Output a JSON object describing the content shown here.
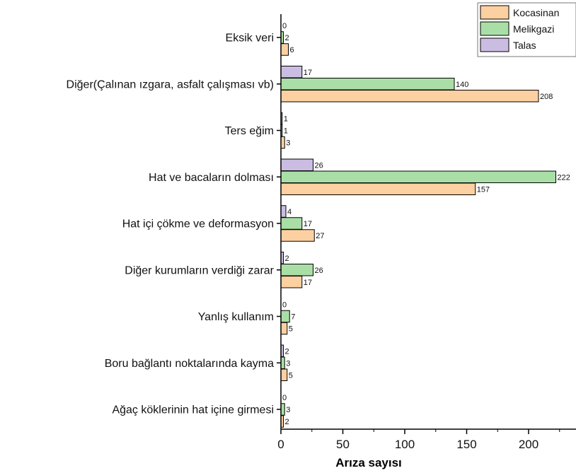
{
  "chart_data": {
    "type": "bar",
    "orientation": "horizontal",
    "title": "",
    "xlabel": "Arıza sayısı",
    "ylabel": "",
    "xlim": [
      0,
      235
    ],
    "x_ticks": [
      0,
      50,
      100,
      150,
      200
    ],
    "grid": false,
    "legend_position": "top-right",
    "categories": [
      "Eksik veri",
      "Diğer(Çalınan ızgara, asfalt çalışması vb)",
      "Ters eğim",
      "Hat ve bacaların dolması",
      "Hat içi çökme ve deformasyon",
      "Diğer kurumların verdiği zarar",
      "Yanlış kullanım",
      "Boru bağlantı noktalarında kayma",
      "Ağaç köklerinin hat içine girmesi"
    ],
    "series": [
      {
        "name": "Kocasinan",
        "color": "#fcd0a1",
        "values": [
          6,
          208,
          3,
          157,
          27,
          17,
          5,
          5,
          2
        ]
      },
      {
        "name": "Melikgazi",
        "color": "#a9dfa6",
        "values": [
          2,
          140,
          1,
          222,
          17,
          26,
          7,
          3,
          3
        ]
      },
      {
        "name": "Talas",
        "color": "#cbbde2",
        "values": [
          0,
          17,
          1,
          26,
          4,
          2,
          0,
          2,
          0
        ]
      }
    ]
  }
}
